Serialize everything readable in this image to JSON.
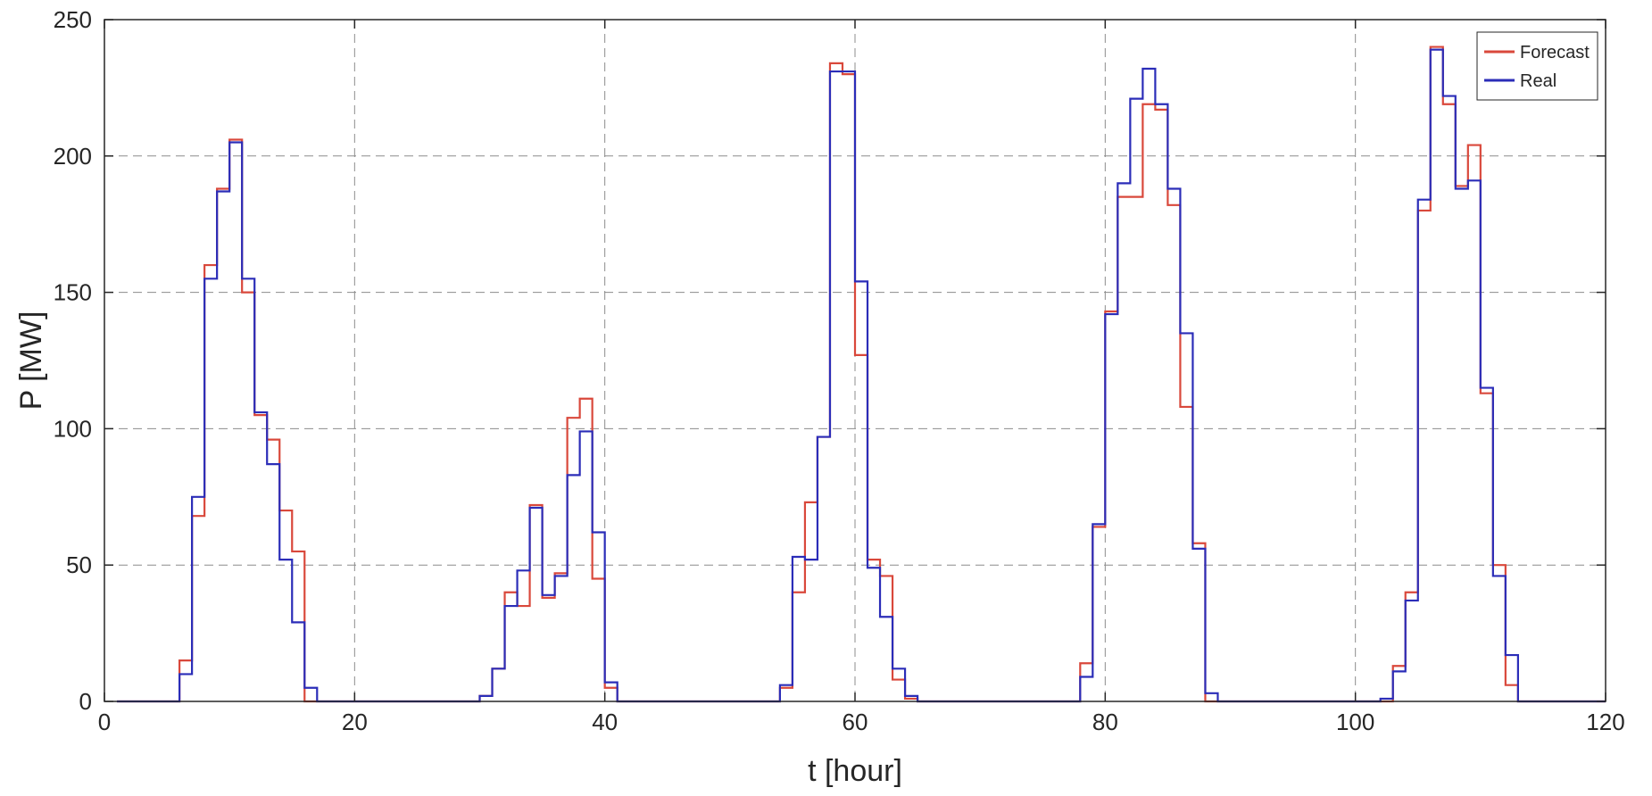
{
  "chart_data": {
    "type": "line",
    "style": "stairs",
    "xlabel": "t [hour]",
    "ylabel": "P [MW]",
    "xlim": [
      0,
      120
    ],
    "ylim": [
      0,
      250
    ],
    "x_ticks": [
      0,
      20,
      40,
      60,
      80,
      100,
      120
    ],
    "y_ticks": [
      0,
      50,
      100,
      150,
      200,
      250
    ],
    "grid": true,
    "legend_position": "top-right",
    "x": [
      1,
      2,
      3,
      4,
      5,
      6,
      7,
      8,
      9,
      10,
      11,
      12,
      13,
      14,
      15,
      16,
      17,
      18,
      19,
      20,
      21,
      22,
      23,
      24,
      25,
      26,
      27,
      28,
      29,
      30,
      31,
      32,
      33,
      34,
      35,
      36,
      37,
      38,
      39,
      40,
      41,
      42,
      43,
      44,
      45,
      46,
      47,
      48,
      49,
      50,
      51,
      52,
      53,
      54,
      55,
      56,
      57,
      58,
      59,
      60,
      61,
      62,
      63,
      64,
      65,
      66,
      67,
      68,
      69,
      70,
      71,
      72,
      73,
      74,
      75,
      76,
      77,
      78,
      79,
      80,
      81,
      82,
      83,
      84,
      85,
      86,
      87,
      88,
      89,
      90,
      91,
      92,
      93,
      94,
      95,
      96,
      97,
      98,
      99,
      100,
      101,
      102,
      103,
      104,
      105,
      106,
      107,
      108,
      109,
      110,
      111,
      112,
      113,
      114,
      115,
      116,
      117,
      118,
      119,
      120
    ],
    "series": [
      {
        "name": "Forecast",
        "color": "#d9483b",
        "values": [
          0,
          0,
          0,
          0,
          0,
          15,
          68,
          160,
          188,
          206,
          150,
          105,
          96,
          70,
          55,
          0,
          0,
          0,
          0,
          0,
          0,
          0,
          0,
          0,
          0,
          0,
          0,
          0,
          0,
          2,
          12,
          40,
          35,
          72,
          38,
          47,
          104,
          111,
          45,
          5,
          0,
          0,
          0,
          0,
          0,
          0,
          0,
          0,
          0,
          0,
          0,
          0,
          0,
          5,
          40,
          73,
          97,
          234,
          230,
          127,
          52,
          46,
          8,
          1,
          0,
          0,
          0,
          0,
          0,
          0,
          0,
          0,
          0,
          0,
          0,
          0,
          0,
          14,
          64,
          143,
          185,
          185,
          219,
          217,
          182,
          108,
          58,
          0,
          0,
          0,
          0,
          0,
          0,
          0,
          0,
          0,
          0,
          0,
          0,
          0,
          0,
          0,
          13,
          40,
          180,
          240,
          219,
          189,
          204,
          113,
          50,
          6,
          0,
          0,
          0,
          0,
          0,
          0,
          0,
          0
        ]
      },
      {
        "name": "Real",
        "color": "#2b2db8",
        "values": [
          0,
          0,
          0,
          0,
          0,
          10,
          75,
          155,
          187,
          205,
          155,
          106,
          87,
          52,
          29,
          5,
          0,
          0,
          0,
          0,
          0,
          0,
          0,
          0,
          0,
          0,
          0,
          0,
          0,
          2,
          12,
          35,
          48,
          71,
          39,
          46,
          83,
          99,
          62,
          7,
          0,
          0,
          0,
          0,
          0,
          0,
          0,
          0,
          0,
          0,
          0,
          0,
          0,
          6,
          53,
          52,
          97,
          231,
          231,
          154,
          49,
          31,
          12,
          2,
          0,
          0,
          0,
          0,
          0,
          0,
          0,
          0,
          0,
          0,
          0,
          0,
          0,
          9,
          65,
          142,
          190,
          221,
          232,
          219,
          188,
          135,
          56,
          3,
          0,
          0,
          0,
          0,
          0,
          0,
          0,
          0,
          0,
          0,
          0,
          0,
          0,
          1,
          11,
          37,
          184,
          239,
          222,
          188,
          191,
          115,
          46,
          17,
          0,
          0,
          0,
          0,
          0,
          0,
          0,
          0
        ]
      }
    ]
  }
}
